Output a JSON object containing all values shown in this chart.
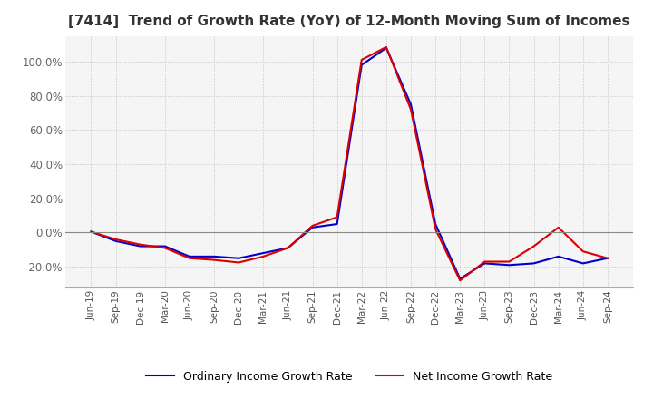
{
  "title": "[7414]  Trend of Growth Rate (YoY) of 12-Month Moving Sum of Incomes",
  "title_fontsize": 11,
  "ylim": [
    -32,
    115
  ],
  "ytick_values": [
    -20.0,
    0.0,
    20.0,
    40.0,
    60.0,
    80.0,
    100.0
  ],
  "background_color": "#ffffff",
  "plot_bg_color": "#f5f5f5",
  "grid_color": "#bbbbbb",
  "legend_labels": [
    "Ordinary Income Growth Rate",
    "Net Income Growth Rate"
  ],
  "legend_colors": [
    "#0000cc",
    "#dd0000"
  ],
  "x_labels": [
    "Jun-19",
    "Sep-19",
    "Dec-19",
    "Mar-20",
    "Jun-20",
    "Sep-20",
    "Dec-20",
    "Mar-21",
    "Jun-21",
    "Sep-21",
    "Dec-21",
    "Mar-22",
    "Jun-22",
    "Sep-22",
    "Dec-22",
    "Mar-23",
    "Jun-23",
    "Sep-23",
    "Dec-23",
    "Mar-24",
    "Jun-24",
    "Sep-24"
  ],
  "ordinary_income_growth": [
    0.5,
    -5.0,
    -8.0,
    -8.0,
    -14.0,
    -14.0,
    -15.0,
    -12.0,
    -9.0,
    3.0,
    5.0,
    98.0,
    108.0,
    75.0,
    5.0,
    -27.0,
    -18.0,
    -19.0,
    -18.0,
    -14.0,
    -18.0,
    -15.0
  ],
  "net_income_growth": [
    0.5,
    -4.0,
    -7.0,
    -9.0,
    -15.0,
    -16.0,
    -17.5,
    -14.0,
    -9.0,
    4.0,
    9.0,
    101.0,
    108.5,
    72.0,
    2.0,
    -28.0,
    -17.0,
    -17.0,
    -8.0,
    3.0,
    -11.0,
    -15.0
  ]
}
